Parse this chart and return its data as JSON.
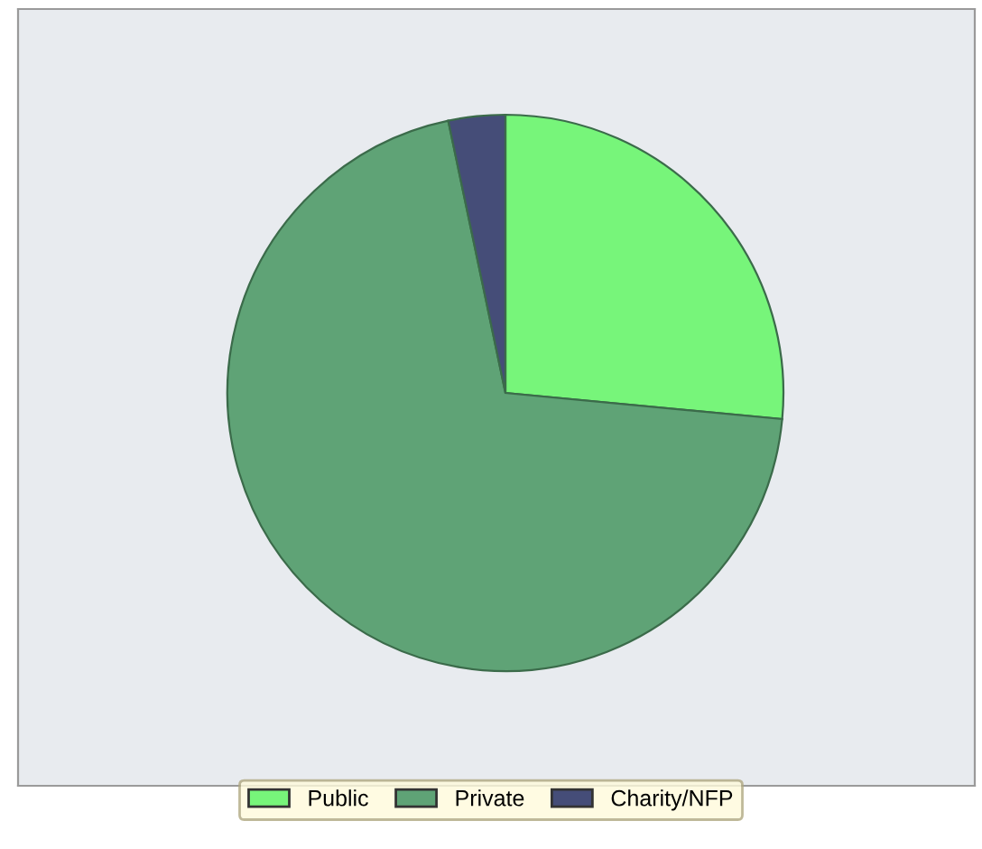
{
  "chart_data": {
    "type": "pie",
    "categories": [
      "Public",
      "Private",
      "Charity/NFP"
    ],
    "values": [
      26.5,
      70.2,
      3.3
    ],
    "colors": [
      "#77f57a",
      "#5fa376",
      "#454d78"
    ],
    "legend": "bottom"
  }
}
